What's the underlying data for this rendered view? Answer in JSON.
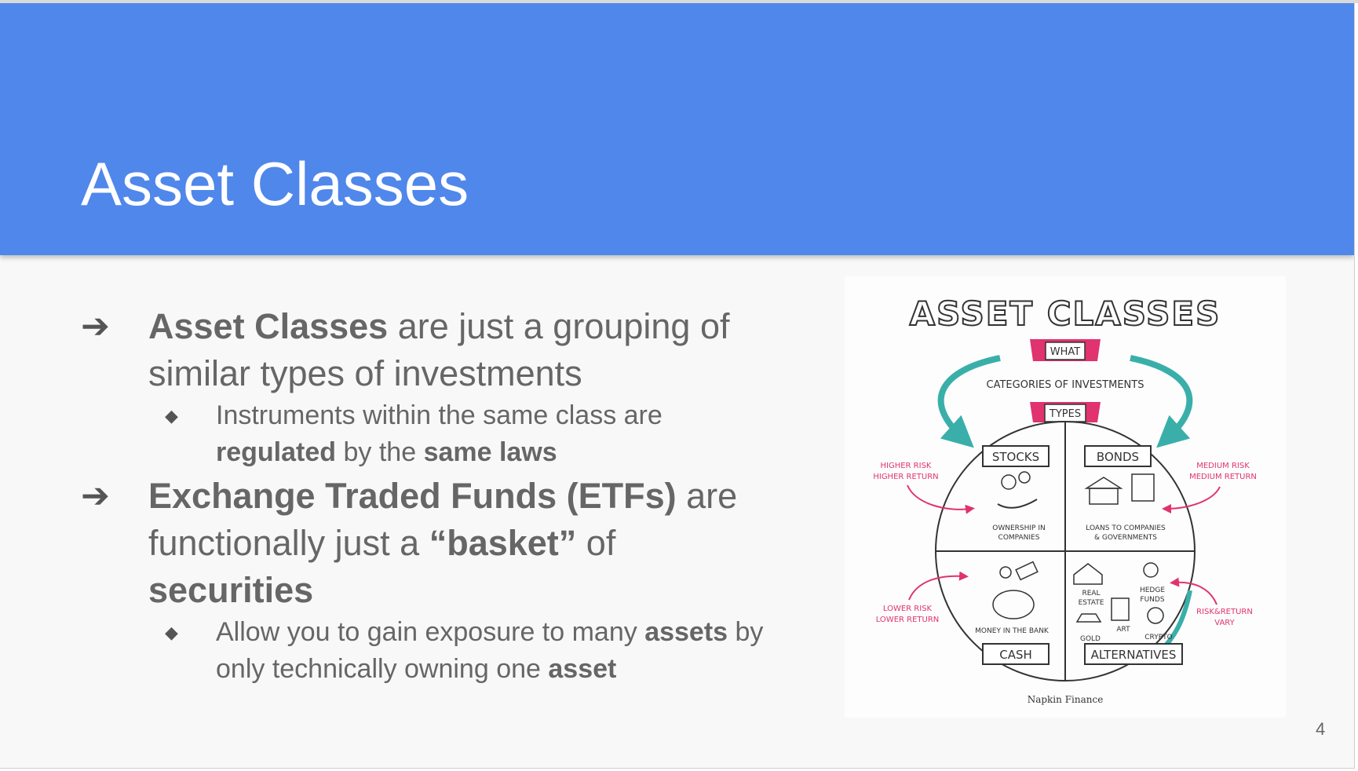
{
  "slide": {
    "title": "Asset Classes",
    "page_number": "4",
    "bullets": [
      {
        "strong1": "Asset Classes",
        "text1": " are just a grouping of similar types of investments"
      },
      {
        "text1": "Instruments within the same class are ",
        "strong1": "regulated",
        "text2": " by the ",
        "strong2": "same laws"
      },
      {
        "strong1": "Exchange Traded Funds (ETFs)",
        "text1": " are functionally just a ",
        "strong2": "“basket”",
        "text2": " of ",
        "strong3": "securities"
      },
      {
        "text1": "Allow you to gain exposure to many ",
        "strong1": "assets",
        "text2": " by only technically owning one ",
        "strong2": "asset"
      }
    ]
  },
  "infographic": {
    "title": "ASSET CLASSES",
    "what_label": "WHAT",
    "what_text": "CATEGORIES OF INVESTMENTS",
    "types_label": "TYPES",
    "stocks": {
      "label": "STOCKS",
      "desc1": "OWNERSHIP IN",
      "desc2": "COMPANIES",
      "risk1": "HIGHER RISK",
      "risk2": "HIGHER RETURN"
    },
    "bonds": {
      "label": "BONDS",
      "desc1": "LOANS TO COMPANIES",
      "desc2": "& GOVERNMENTS",
      "risk1": "MEDIUM RISK",
      "risk2": "MEDIUM RETURN"
    },
    "cash": {
      "label": "CASH",
      "desc": "MONEY IN THE BANK",
      "risk1": "LOWER RISK",
      "risk2": "LOWER RETURN"
    },
    "alternatives": {
      "label": "ALTERNATIVES",
      "real_estate1": "REAL",
      "real_estate2": "ESTATE",
      "hedge1": "HEDGE",
      "hedge2": "FUNDS",
      "art": "ART",
      "gold": "GOLD",
      "crypto": "CRYPTO",
      "risk1": "RISK&RETURN",
      "risk2": "VARY"
    },
    "credit": "Napkin Finance",
    "colors": {
      "teal": "#3aafa9",
      "pink": "#e0336f",
      "ink": "#333333"
    }
  }
}
